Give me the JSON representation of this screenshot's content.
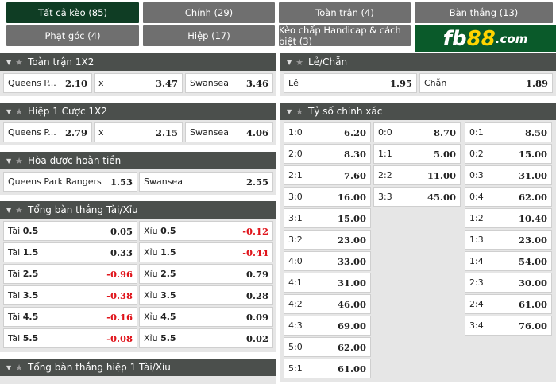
{
  "tabs": [
    {
      "label": "Tất cả kèo (85)",
      "active": true
    },
    {
      "label": "Chính (29)"
    },
    {
      "label": "Toàn trận (4)"
    },
    {
      "label": "Bàn thắng (13)"
    },
    {
      "label": "Phạt góc (4)"
    },
    {
      "label": "Hiệp (17)"
    },
    {
      "label": "Kèo chấp Handicap & cách biệt (3)"
    }
  ],
  "logo": {
    "text": "fb88.com",
    "part1": "fb",
    "part2": "88",
    "part3": ".com"
  },
  "colors": {
    "header": "#4b4f4c",
    "active_tab": "#0f3d24",
    "negative": "#e0141b",
    "logo_bg": "#0a5a2a"
  },
  "sections": {
    "full_1x2": {
      "title": "Toàn trận 1X2",
      "cells": [
        {
          "label": "Queens P...",
          "odd": "2.10"
        },
        {
          "label": "x",
          "odd": "3.47"
        },
        {
          "label": "Swansea",
          "odd": "3.46"
        }
      ]
    },
    "half1_1x2": {
      "title": "Hiệp 1 Cược 1X2",
      "cells": [
        {
          "label": "Queens P...",
          "odd": "2.79"
        },
        {
          "label": "x",
          "odd": "2.15"
        },
        {
          "label": "Swansea",
          "odd": "4.06"
        }
      ]
    },
    "draw_no_bet": {
      "title": "Hòa được hoàn tiền",
      "cells": [
        {
          "label": "Queens Park Rangers",
          "odd": "1.53"
        },
        {
          "label": "Swansea",
          "odd": "2.55"
        }
      ]
    },
    "over_under": {
      "title": "Tổng bàn thắng Tài/Xỉu",
      "rows": [
        [
          {
            "label": "Tài",
            "line": "0.5",
            "odd": "0.05"
          },
          {
            "label": "Xỉu",
            "line": "0.5",
            "odd": "-0.12"
          }
        ],
        [
          {
            "label": "Tài",
            "line": "1.5",
            "odd": "0.33"
          },
          {
            "label": "Xỉu",
            "line": "1.5",
            "odd": "-0.44"
          }
        ],
        [
          {
            "label": "Tài",
            "line": "2.5",
            "odd": "-0.96"
          },
          {
            "label": "Xỉu",
            "line": "2.5",
            "odd": "0.79"
          }
        ],
        [
          {
            "label": "Tài",
            "line": "3.5",
            "odd": "-0.38"
          },
          {
            "label": "Xỉu",
            "line": "3.5",
            "odd": "0.28"
          }
        ],
        [
          {
            "label": "Tài",
            "line": "4.5",
            "odd": "-0.16"
          },
          {
            "label": "Xỉu",
            "line": "4.5",
            "odd": "0.09"
          }
        ],
        [
          {
            "label": "Tài",
            "line": "5.5",
            "odd": "-0.08"
          },
          {
            "label": "Xỉu",
            "line": "5.5",
            "odd": "0.02"
          }
        ]
      ]
    },
    "half1_over_under": {
      "title": "Tổng bàn thắng hiệp 1 Tài/Xỉu"
    },
    "odd_even": {
      "title": "Lẻ/Chẵn",
      "cells": [
        {
          "label": "Lẻ",
          "odd": "1.95"
        },
        {
          "label": "Chẵn",
          "odd": "1.89"
        }
      ]
    },
    "correct_score": {
      "title": "Tỷ số chính xác",
      "columns": [
        [
          {
            "label": "1:0",
            "odd": "6.20"
          },
          {
            "label": "2:0",
            "odd": "8.30"
          },
          {
            "label": "2:1",
            "odd": "7.60"
          },
          {
            "label": "3:0",
            "odd": "16.00"
          },
          {
            "label": "3:1",
            "odd": "15.00"
          },
          {
            "label": "3:2",
            "odd": "23.00"
          },
          {
            "label": "4:0",
            "odd": "33.00"
          },
          {
            "label": "4:1",
            "odd": "31.00"
          },
          {
            "label": "4:2",
            "odd": "46.00"
          },
          {
            "label": "4:3",
            "odd": "69.00"
          },
          {
            "label": "5:0",
            "odd": "62.00"
          },
          {
            "label": "5:1",
            "odd": "61.00"
          }
        ],
        [
          {
            "label": "0:0",
            "odd": "8.70"
          },
          {
            "label": "1:1",
            "odd": "5.00"
          },
          {
            "label": "2:2",
            "odd": "11.00"
          },
          {
            "label": "3:3",
            "odd": "45.00"
          }
        ],
        [
          {
            "label": "0:1",
            "odd": "8.50"
          },
          {
            "label": "0:2",
            "odd": "15.00"
          },
          {
            "label": "0:3",
            "odd": "31.00"
          },
          {
            "label": "0:4",
            "odd": "62.00"
          },
          {
            "label": "1:2",
            "odd": "10.40"
          },
          {
            "label": "1:3",
            "odd": "23.00"
          },
          {
            "label": "1:4",
            "odd": "54.00"
          },
          {
            "label": "2:3",
            "odd": "30.00"
          },
          {
            "label": "2:4",
            "odd": "61.00"
          },
          {
            "label": "3:4",
            "odd": "76.00"
          }
        ]
      ]
    }
  }
}
